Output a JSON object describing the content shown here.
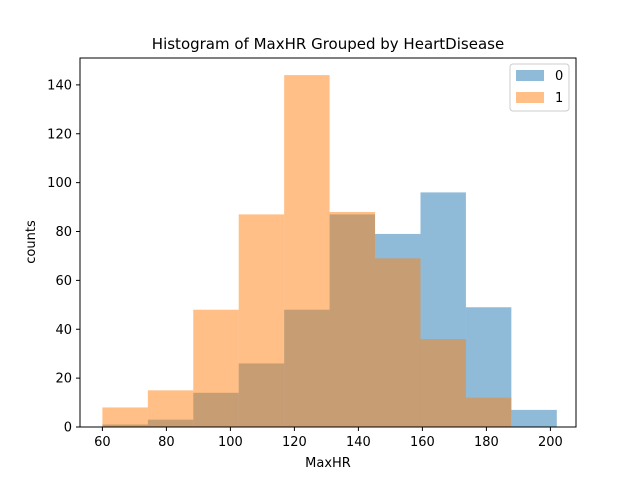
{
  "chart_data": {
    "type": "bar",
    "title": "Histogram of MaxHR Grouped by HeartDisease",
    "xlabel": "MaxHR",
    "ylabel": "counts",
    "xlim": [
      53,
      208
    ],
    "ylim": [
      0,
      151
    ],
    "x_ticks": [
      60,
      80,
      100,
      120,
      140,
      160,
      180,
      200
    ],
    "y_ticks": [
      0,
      20,
      40,
      60,
      80,
      100,
      120,
      140
    ],
    "grid": false,
    "legend_position": "top-right",
    "series": [
      {
        "name": "0",
        "color": "#1f77b4",
        "opacity": 0.5,
        "bins": [
          {
            "x0": 60,
            "x1": 74.2,
            "value": 1
          },
          {
            "x0": 74.2,
            "x1": 88.4,
            "value": 3
          },
          {
            "x0": 88.4,
            "x1": 102.6,
            "value": 14
          },
          {
            "x0": 102.6,
            "x1": 116.8,
            "value": 26
          },
          {
            "x0": 116.8,
            "x1": 131.0,
            "value": 48
          },
          {
            "x0": 131.0,
            "x1": 145.2,
            "value": 87
          },
          {
            "x0": 145.2,
            "x1": 159.4,
            "value": 79
          },
          {
            "x0": 159.4,
            "x1": 173.6,
            "value": 96
          },
          {
            "x0": 173.6,
            "x1": 187.8,
            "value": 49
          },
          {
            "x0": 187.8,
            "x1": 202.0,
            "value": 7
          }
        ]
      },
      {
        "name": "1",
        "color": "#ff7f0e",
        "opacity": 0.5,
        "bins": [
          {
            "x0": 60,
            "x1": 74.2,
            "value": 8
          },
          {
            "x0": 74.2,
            "x1": 88.4,
            "value": 15
          },
          {
            "x0": 88.4,
            "x1": 102.6,
            "value": 48
          },
          {
            "x0": 102.6,
            "x1": 116.8,
            "value": 87
          },
          {
            "x0": 116.8,
            "x1": 131.0,
            "value": 144
          },
          {
            "x0": 131.0,
            "x1": 145.2,
            "value": 88
          },
          {
            "x0": 145.2,
            "x1": 159.4,
            "value": 69
          },
          {
            "x0": 159.4,
            "x1": 173.6,
            "value": 36
          },
          {
            "x0": 173.6,
            "x1": 187.8,
            "value": 12
          },
          {
            "x0": 187.8,
            "x1": 202.0,
            "value": 0
          }
        ]
      }
    ]
  }
}
